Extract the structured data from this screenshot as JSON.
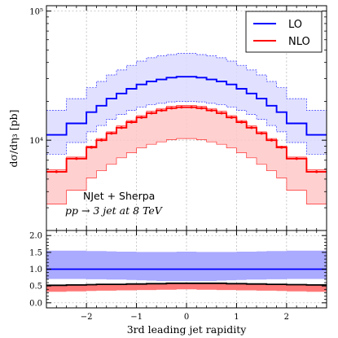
{
  "chart_data": [
    {
      "type": "step-band",
      "panel": "main",
      "ylabel": "dσ/dη₃ [pb]",
      "yscale": "log",
      "ylim": [
        2000,
        110000
      ],
      "yticks": [
        {
          "value": 10000,
          "label": "10⁴"
        },
        {
          "value": 100000,
          "label": "10⁵"
        }
      ],
      "xlim": [
        -2.8,
        2.8
      ],
      "grid": true,
      "legend": {
        "placement": "top-right",
        "entries": [
          {
            "name": "LO",
            "color": "#0000ff"
          },
          {
            "name": "NLO",
            "color": "#ff0000"
          }
        ]
      },
      "annotations": [
        "NJet + Sherpa",
        "pp → 3 jet at 8 TeV"
      ],
      "bin_edges": [
        -2.8,
        -2.4,
        -2.0,
        -1.8,
        -1.6,
        -1.4,
        -1.2,
        -1.0,
        -0.8,
        -0.6,
        -0.4,
        -0.2,
        0.0,
        0.2,
        0.4,
        0.6,
        0.8,
        1.0,
        1.2,
        1.4,
        1.6,
        1.8,
        2.0,
        2.4,
        2.8
      ],
      "series": [
        {
          "name": "LO",
          "color": "#0000ff",
          "band_color": "#dcdcff",
          "values": [
            11000,
            13500,
            16500,
            18500,
            21000,
            23000,
            25000,
            27000,
            28500,
            29500,
            30500,
            31000,
            31000,
            30500,
            29500,
            28500,
            27000,
            25000,
            23000,
            21000,
            18500,
            16500,
            13500,
            11000
          ],
          "band_low": [
            7800,
            9600,
            11600,
            13000,
            14500,
            15800,
            17000,
            18000,
            18800,
            19300,
            19800,
            20000,
            20000,
            19800,
            19300,
            18800,
            18000,
            17000,
            15800,
            14500,
            13000,
            11600,
            9600,
            7800
          ],
          "band_high": [
            17000,
            21000,
            25500,
            28500,
            32000,
            35000,
            38000,
            41000,
            43500,
            45000,
            46000,
            47000,
            47000,
            46000,
            45000,
            43500,
            41000,
            38000,
            35000,
            32000,
            28500,
            25500,
            21000,
            17000
          ]
        },
        {
          "name": "NLO",
          "color": "#ff0000",
          "band_color": "#ffc8c8",
          "values": [
            5700,
            7200,
            8800,
            10000,
            11300,
            12500,
            13800,
            15000,
            16200,
            17000,
            17700,
            18000,
            18000,
            17700,
            17000,
            16200,
            15000,
            13800,
            12500,
            11300,
            10000,
            8800,
            7200,
            5700
          ],
          "band_low": [
            3200,
            4100,
            5100,
            5800,
            6500,
            7300,
            8000,
            8700,
            9300,
            9700,
            10100,
            10300,
            10300,
            10100,
            9700,
            9300,
            8700,
            8000,
            7300,
            6500,
            5800,
            5100,
            4100,
            3200
          ],
          "band_high": [
            5900,
            7400,
            9000,
            10300,
            11600,
            12900,
            14200,
            15500,
            16800,
            17600,
            18300,
            18600,
            18600,
            18300,
            17600,
            16800,
            15500,
            14200,
            12900,
            11600,
            10300,
            9000,
            7400,
            5900
          ]
        }
      ]
    },
    {
      "type": "step-band",
      "panel": "ratio",
      "xlabel": "3rd leading jet rapidity",
      "xlim": [
        -2.8,
        2.8
      ],
      "xticks": [
        -2,
        -1,
        0,
        1,
        2
      ],
      "ylim": [
        -0.15,
        2.15
      ],
      "yticks": [
        0.0,
        0.5,
        1.0,
        1.5,
        2.0
      ],
      "ytick_labels": [
        "0.0",
        "0.5",
        "1.0",
        "1.5",
        "2.0"
      ],
      "grid": true,
      "bin_edges": [
        -2.8,
        -2.4,
        -2.0,
        -1.8,
        -1.6,
        -1.4,
        -1.2,
        -1.0,
        -0.8,
        -0.6,
        -0.4,
        -0.2,
        0.0,
        0.2,
        0.4,
        0.6,
        0.8,
        1.0,
        1.2,
        1.4,
        1.6,
        1.8,
        2.0,
        2.4,
        2.8
      ],
      "series": [
        {
          "name": "LO",
          "color": "#0000ff",
          "band_color": "#aaaaff",
          "values": [
            1.0,
            1.0,
            1.0,
            1.0,
            1.0,
            1.0,
            1.0,
            1.0,
            1.0,
            1.0,
            1.0,
            1.0,
            1.0,
            1.0,
            1.0,
            1.0,
            1.0,
            1.0,
            1.0,
            1.0,
            1.0,
            1.0,
            1.0,
            1.0
          ],
          "band_low": [
            0.71,
            0.71,
            0.7,
            0.7,
            0.69,
            0.69,
            0.68,
            0.67,
            0.66,
            0.65,
            0.65,
            0.65,
            0.65,
            0.65,
            0.65,
            0.66,
            0.67,
            0.68,
            0.69,
            0.69,
            0.7,
            0.7,
            0.71,
            0.71
          ],
          "band_high": [
            1.55,
            1.55,
            1.54,
            1.54,
            1.53,
            1.52,
            1.52,
            1.51,
            1.51,
            1.51,
            1.51,
            1.52,
            1.52,
            1.51,
            1.51,
            1.51,
            1.51,
            1.52,
            1.52,
            1.53,
            1.54,
            1.54,
            1.55,
            1.55
          ]
        },
        {
          "name": "NLO",
          "color": "#000000",
          "band_color": "#ff7777",
          "values": [
            0.52,
            0.53,
            0.54,
            0.55,
            0.55,
            0.55,
            0.56,
            0.56,
            0.57,
            0.57,
            0.58,
            0.58,
            0.58,
            0.58,
            0.58,
            0.58,
            0.57,
            0.57,
            0.56,
            0.56,
            0.55,
            0.55,
            0.54,
            0.53
          ],
          "band_low": [
            0.33,
            0.34,
            0.35,
            0.36,
            0.36,
            0.37,
            0.37,
            0.38,
            0.38,
            0.39,
            0.39,
            0.4,
            0.4,
            0.39,
            0.39,
            0.38,
            0.38,
            0.37,
            0.37,
            0.36,
            0.36,
            0.35,
            0.34,
            0.33
          ],
          "band_high": [
            0.53,
            0.54,
            0.55,
            0.56,
            0.56,
            0.56,
            0.57,
            0.57,
            0.58,
            0.58,
            0.59,
            0.59,
            0.59,
            0.59,
            0.59,
            0.59,
            0.58,
            0.58,
            0.57,
            0.57,
            0.56,
            0.56,
            0.55,
            0.54
          ]
        }
      ]
    }
  ]
}
